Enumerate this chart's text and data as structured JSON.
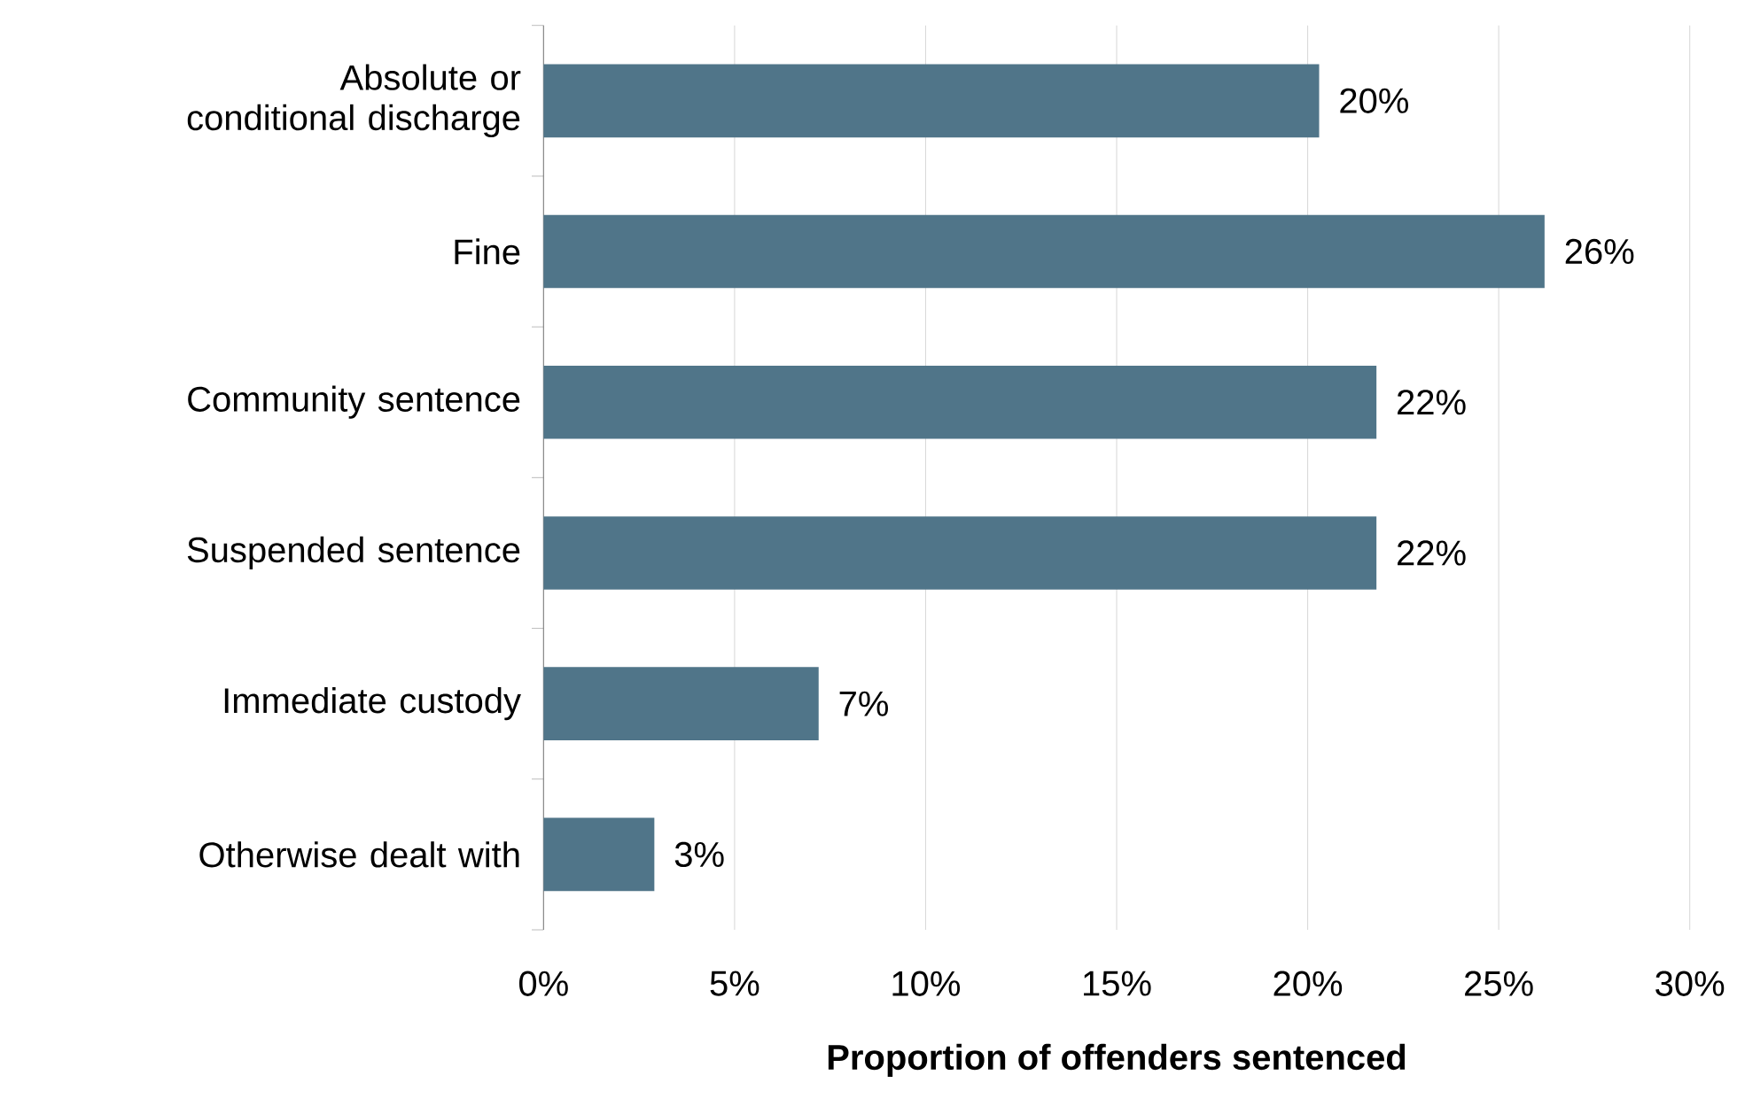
{
  "chart_data": {
    "type": "bar",
    "orientation": "horizontal",
    "xlabel": "Proportion of offenders  sentenced",
    "categories": [
      "Absolute or conditional discharge",
      "Fine",
      "Community sentence",
      "Suspended sentence",
      "Immediate custody",
      "Otherwise dealt with"
    ],
    "values": [
      20.3,
      26.2,
      21.8,
      21.8,
      7.2,
      2.9
    ],
    "value_labels": [
      "20%",
      "26%",
      "22%",
      "22%",
      "7%",
      "3%"
    ],
    "color": "#507589",
    "xlim": [
      0,
      30
    ],
    "xticks": [
      {
        "value": 0,
        "label": "0%"
      },
      {
        "value": 5,
        "label": "5%"
      },
      {
        "value": 10,
        "label": "10%"
      },
      {
        "value": 15,
        "label": "15%"
      },
      {
        "value": 20,
        "label": "20%"
      },
      {
        "value": 25,
        "label": "25%"
      },
      {
        "value": 30,
        "label": "30%"
      }
    ],
    "grid": "x"
  }
}
